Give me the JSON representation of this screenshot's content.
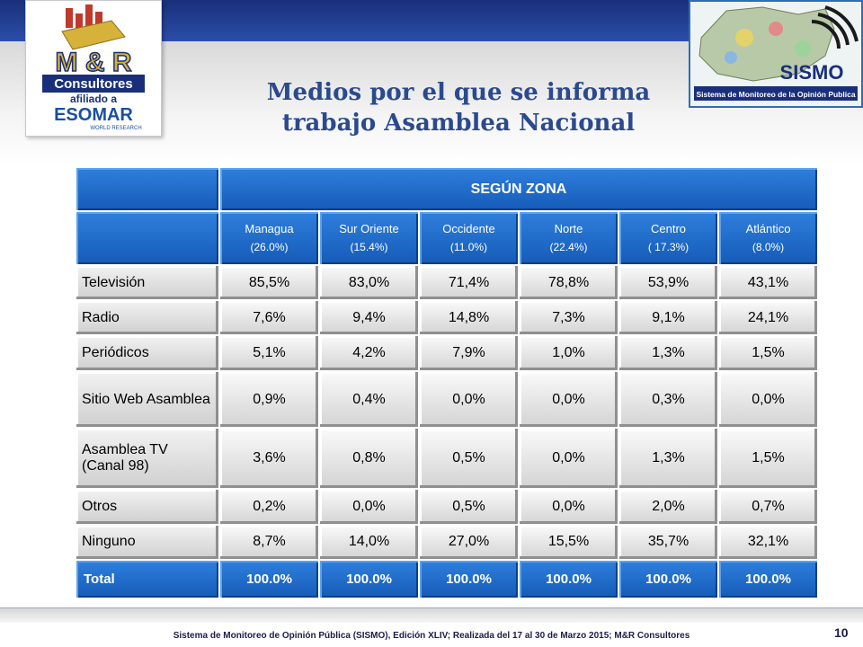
{
  "title_lines": [
    "Medios por el que se informa",
    "trabajo Asamblea Nacional"
  ],
  "left_logo": {
    "line1": "M & R",
    "line2": "Consultores",
    "line3": "afiliado a",
    "line4": "ESOMAR",
    "line5": "WORLD RESEARCH"
  },
  "right_logo": {
    "name": "SISMO",
    "caption": "Sistema de Monitoreo de la Opinión Publica"
  },
  "table": {
    "group_header": "SEGÚN ZONA",
    "columns": [
      {
        "name": "Managua",
        "share": "(26.0%)"
      },
      {
        "name": "Sur Oriente",
        "share": "(15.4%)"
      },
      {
        "name": "Occidente",
        "share": "(11.0%)"
      },
      {
        "name": "Norte",
        "share": "(22.4%)"
      },
      {
        "name": "Centro",
        "share": "( 17.3%)"
      },
      {
        "name": "Atlántico",
        "share": "(8.0%)"
      }
    ],
    "rows": [
      {
        "label": "Televisión",
        "values": [
          "85,5%",
          "83,0%",
          "71,4%",
          "78,8%",
          "53,9%",
          "43,1%"
        ]
      },
      {
        "label": "Radio",
        "values": [
          "7,6%",
          "9,4%",
          "14,8%",
          "7,3%",
          "9,1%",
          "24,1%"
        ]
      },
      {
        "label": "Periódicos",
        "values": [
          "5,1%",
          "4,2%",
          "7,9%",
          "1,0%",
          "1,3%",
          "1,5%"
        ]
      },
      {
        "label": "Sitio Web Asamblea",
        "values": [
          "0,9%",
          "0,4%",
          "0,0%",
          "0,0%",
          "0,3%",
          "0,0%"
        ]
      },
      {
        "label": "Asamblea TV (Canal 98)",
        "values": [
          "3,6%",
          "0,8%",
          "0,5%",
          "0,0%",
          "1,3%",
          "1,5%"
        ]
      },
      {
        "label": "Otros",
        "values": [
          "0,2%",
          "0,0%",
          "0,5%",
          "0,0%",
          "2,0%",
          "0,7%"
        ]
      },
      {
        "label": "Ninguno",
        "values": [
          "8,7%",
          "14,0%",
          "27,0%",
          "15,5%",
          "35,7%",
          "32,1%"
        ]
      }
    ],
    "total": {
      "label": "Total",
      "values": [
        "100.0%",
        "100.0%",
        "100.0%",
        "100.0%",
        "100.0%",
        "100.0%"
      ]
    }
  },
  "footer": "Sistema de Monitoreo de Opinión Pública (SISMO), Edición XLIV; Realizada del 17 al 30 de Marzo 2015; M&R Consultores",
  "page_number": "10",
  "colors": {
    "header_blue": "#1f6fd0",
    "title_blue": "#2b4a8e",
    "band_navy": "#1a2f7a"
  }
}
